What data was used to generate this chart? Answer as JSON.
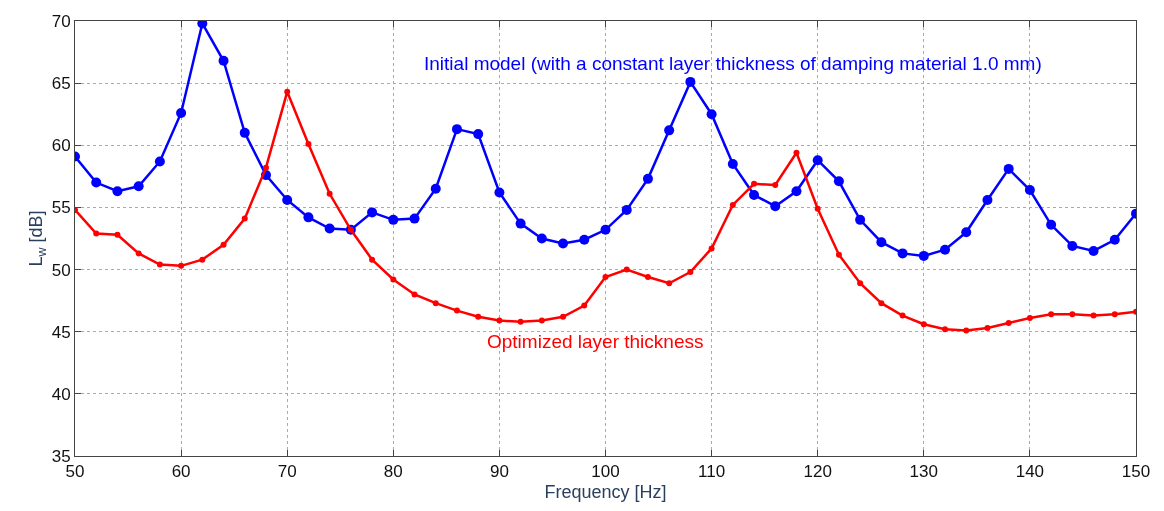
{
  "chart_data": {
    "type": "line",
    "xlabel": "Frequency [Hz]",
    "ylabel": "L$_{w}$ [dB]",
    "x": [
      50,
      52,
      54,
      56,
      58,
      60,
      62,
      64,
      66,
      68,
      70,
      72,
      74,
      76,
      78,
      80,
      82,
      84,
      86,
      88,
      90,
      92,
      94,
      96,
      98,
      100,
      102,
      104,
      106,
      108,
      110,
      112,
      114,
      116,
      118,
      120,
      122,
      124,
      126,
      128,
      130,
      132,
      134,
      136,
      138,
      140,
      142,
      144,
      146,
      148,
      150
    ],
    "series": [
      {
        "name": "Initial model (with a constant layer thickness of damping material 1.0 mm)",
        "color": "#0000ff",
        "values": [
          59.1,
          57.0,
          56.3,
          56.7,
          58.7,
          62.6,
          69.8,
          66.8,
          61.0,
          57.6,
          55.6,
          54.2,
          53.3,
          53.2,
          54.6,
          54.0,
          54.1,
          56.5,
          61.3,
          60.9,
          56.2,
          53.7,
          52.5,
          52.1,
          52.4,
          53.2,
          54.8,
          57.3,
          61.2,
          65.1,
          62.5,
          58.5,
          56.0,
          55.1,
          56.3,
          58.8,
          57.1,
          54.0,
          52.2,
          51.3,
          51.1,
          51.6,
          53.0,
          55.6,
          58.1,
          56.4,
          53.6,
          51.9,
          51.5,
          52.4,
          54.5
        ]
      },
      {
        "name": "Optimized layer thickness",
        "color": "#ff0000",
        "values": [
          54.8,
          52.9,
          52.8,
          51.3,
          50.4,
          50.3,
          50.8,
          52.0,
          54.1,
          58.2,
          64.3,
          60.1,
          56.1,
          53.2,
          50.8,
          49.2,
          48.0,
          47.3,
          46.7,
          46.2,
          45.9,
          45.8,
          45.9,
          46.2,
          47.1,
          49.4,
          50.0,
          49.4,
          48.9,
          49.8,
          51.7,
          55.2,
          56.9,
          56.8,
          59.4,
          54.9,
          51.2,
          48.9,
          47.3,
          46.3,
          45.6,
          45.2,
          45.1,
          45.3,
          45.7,
          46.1,
          46.4,
          46.4,
          46.3,
          46.4,
          46.6
        ]
      }
    ],
    "xlim": [
      50,
      150
    ],
    "xticks": [
      50,
      60,
      70,
      80,
      90,
      100,
      110,
      120,
      130,
      140,
      150
    ],
    "ylim": [
      35,
      70
    ],
    "yticks": [
      35,
      40,
      45,
      50,
      55,
      60,
      65,
      70
    ],
    "grid": true,
    "marker": "circle",
    "line_style": "solid",
    "legend": false
  }
}
